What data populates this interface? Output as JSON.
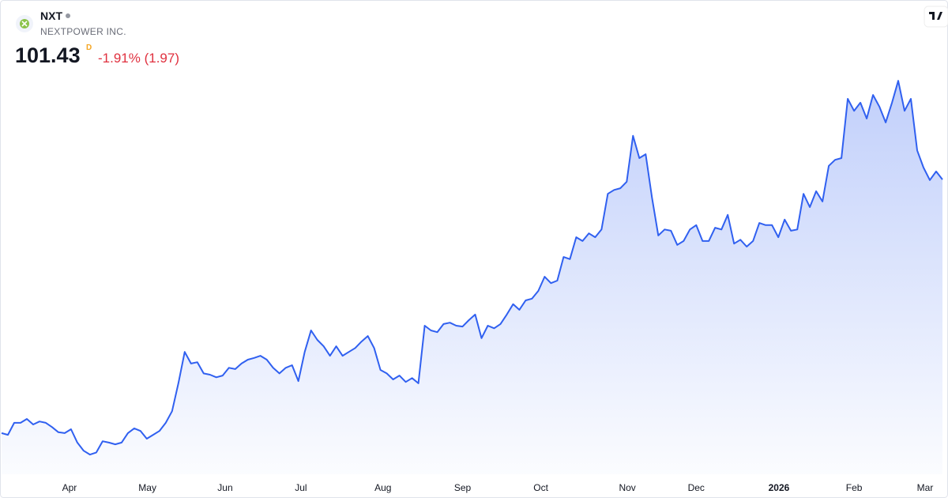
{
  "header": {
    "symbol": "NXT",
    "name": "NEXTPOWER INC.",
    "price": "101.43",
    "frequency": "D",
    "change": "-1.91% (1.97)"
  },
  "chart_data": {
    "type": "area",
    "color": "#3060f0",
    "values": [
      42.4,
      42.0,
      44.8,
      44.8,
      45.7,
      44.4,
      45.1,
      44.8,
      43.8,
      42.6,
      42.4,
      43.3,
      40.2,
      38.3,
      37.4,
      37.9,
      40.5,
      40.2,
      39.8,
      40.2,
      42.4,
      43.5,
      42.9,
      41.1,
      42.0,
      42.9,
      44.8,
      47.5,
      54.0,
      61.3,
      58.6,
      58.9,
      56.3,
      56.0,
      55.4,
      55.8,
      57.6,
      57.3,
      58.6,
      59.5,
      59.9,
      60.4,
      59.5,
      57.6,
      56.3,
      57.6,
      58.2,
      54.5,
      61.3,
      66.3,
      64.1,
      62.6,
      60.4,
      62.6,
      60.4,
      61.3,
      62.2,
      63.7,
      65.0,
      62.2,
      57.1,
      56.3,
      54.9,
      55.8,
      54.3,
      55.2,
      54.0,
      67.4,
      66.3,
      65.9,
      67.8,
      68.1,
      67.4,
      67.2,
      68.7,
      70.0,
      64.5,
      67.4,
      66.8,
      67.8,
      70.0,
      72.4,
      71.1,
      73.3,
      73.7,
      75.5,
      78.8,
      77.3,
      77.9,
      83.4,
      82.9,
      88.0,
      87.1,
      88.9,
      88.0,
      89.8,
      98.1,
      99.0,
      99.4,
      100.9,
      111.6,
      106.4,
      107.3,
      97.2,
      88.4,
      89.8,
      89.5,
      86.2,
      87.1,
      89.8,
      90.8,
      87.1,
      87.1,
      90.2,
      89.8,
      93.2,
      86.5,
      87.4,
      85.8,
      87.1,
      91.3,
      90.8,
      90.8,
      88.0,
      92.1,
      89.5,
      89.8,
      98.1,
      95.0,
      98.7,
      96.3,
      104.6,
      106.0,
      106.4,
      120.2,
      117.4,
      119.3,
      115.6,
      121.1,
      118.4,
      114.7,
      119.3,
      124.4,
      117.4,
      120.2,
      108.2,
      104.2,
      101.3,
      103.3,
      101.43
    ],
    "xlim": [
      0,
      149
    ],
    "xticks": [
      {
        "value": 10.75,
        "label": "Apr"
      },
      {
        "value": 23.1,
        "label": "May"
      },
      {
        "value": 35.4,
        "label": "Jun"
      },
      {
        "value": 47.4,
        "label": "Jul"
      },
      {
        "value": 60.4,
        "label": "Aug"
      },
      {
        "value": 73,
        "label": "Sep"
      },
      {
        "value": 85.4,
        "label": "Oct"
      },
      {
        "value": 99.1,
        "label": "Nov"
      },
      {
        "value": 110,
        "label": "Dec"
      },
      {
        "value": 123.1,
        "label": "2026",
        "bold": true
      },
      {
        "value": 135,
        "label": "Feb"
      },
      {
        "value": 146.25,
        "label": "Mar"
      }
    ],
    "ylim": [
      27.3,
      143.2
    ]
  }
}
